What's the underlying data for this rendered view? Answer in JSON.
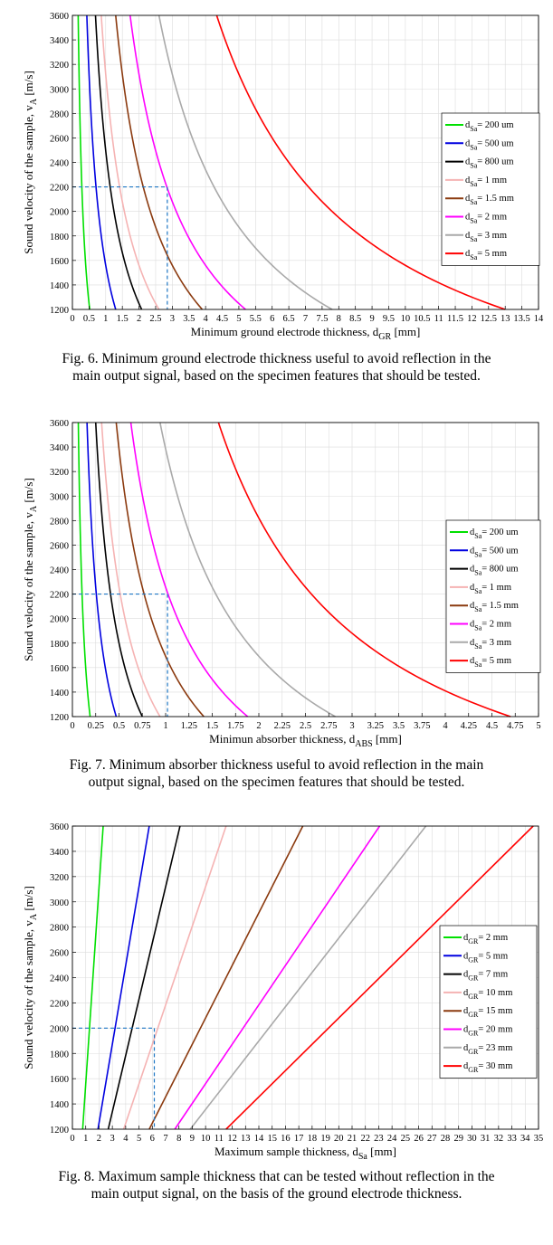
{
  "figures": [
    {
      "caption_lines": [
        "Fig. 6. Minimum ground electrode thickness useful to avoid reflection in the",
        "main output signal, based on the specimen features that should be tested."
      ]
    },
    {
      "caption_lines": [
        "Fig. 7. Minimum absorber thickness useful to avoid reflection in the main",
        "output signal, based on the specimen features that should be tested."
      ]
    },
    {
      "caption_lines": [
        "Fig. 8. Maximum sample thickness that can be tested without reflection in the",
        "main output signal, on the basis of the ground electrode thickness."
      ]
    }
  ],
  "chart_data": [
    {
      "type": "line",
      "xlabel": "Minimum ground electrode thickness, d",
      "xlabel_sub": "GR",
      "xlabel_unit": " [mm]",
      "ylabel": "Sound velocity of the sample, v",
      "ylabel_sub": "A",
      "ylabel_unit": " [m/s]",
      "xlim": [
        0,
        14
      ],
      "ylim": [
        1200,
        3600
      ],
      "xticks": [
        0,
        0.5,
        1,
        1.5,
        2,
        2.5,
        3,
        3.5,
        4,
        4.5,
        5,
        5.5,
        6,
        6.5,
        7,
        7.5,
        8,
        8.5,
        9,
        9.5,
        10,
        10.5,
        11,
        11.5,
        12,
        12.5,
        13,
        13.5,
        14
      ],
      "xtick_labels": [
        "0",
        "0.5",
        "1",
        "1.5",
        "2",
        "2.5",
        "3",
        "3.5",
        "4",
        "4.5",
        "5",
        "5.5",
        "6",
        "6.5",
        "7",
        "7.5",
        "8",
        "8.5",
        "9",
        "9.5",
        "10",
        "10.5",
        "11",
        "11.5",
        "12",
        "12.5",
        "13",
        "13.5",
        "14"
      ],
      "yticks": [
        1200,
        1400,
        1600,
        1800,
        2000,
        2200,
        2400,
        2600,
        2800,
        3000,
        3200,
        3400,
        3600
      ],
      "ytick_labels": [
        "1200",
        "1400",
        "1600",
        "1800",
        "2000",
        "2200",
        "2400",
        "2600",
        "2800",
        "3000",
        "3200",
        "3400",
        "3600"
      ],
      "grid": true,
      "legend_position": "right",
      "legend_prefix": "d",
      "legend_sub": "Sa",
      "series": [
        {
          "name": "= 200 um",
          "color": "#00e000",
          "model": "inverse",
          "x": [
            0.52,
            0.175
          ],
          "y": [
            1200,
            3600
          ]
        },
        {
          "name": "= 500 um",
          "color": "#0000e0",
          "model": "inverse",
          "x": [
            1.3,
            0.433
          ],
          "y": [
            1200,
            3600
          ]
        },
        {
          "name": "= 800 um",
          "color": "#000000",
          "model": "inverse",
          "x": [
            2.08,
            0.693
          ],
          "y": [
            1200,
            3600
          ]
        },
        {
          "name": "= 1 mm",
          "color": "#f5b3b3",
          "model": "inverse",
          "x": [
            2.6,
            0.867
          ],
          "y": [
            1200,
            3600
          ]
        },
        {
          "name": "= 1.5 mm",
          "color": "#8b3a0f",
          "model": "inverse",
          "x": [
            3.9,
            1.3
          ],
          "y": [
            1200,
            3600
          ]
        },
        {
          "name": "= 2 mm",
          "color": "#ff00ff",
          "model": "inverse",
          "x": [
            5.2,
            1.733
          ],
          "y": [
            1200,
            3600
          ]
        },
        {
          "name": "= 3 mm",
          "color": "#a9a9a9",
          "model": "inverse",
          "x": [
            7.8,
            2.6
          ],
          "y": [
            1200,
            3600
          ]
        },
        {
          "name": "= 5 mm",
          "color": "#ff0000",
          "model": "inverse",
          "x": [
            13.0,
            4.333
          ],
          "y": [
            1200,
            3600
          ]
        }
      ],
      "guide": {
        "x": 2.85,
        "y": 2200,
        "color": "#1f77c4"
      }
    },
    {
      "type": "line",
      "xlabel": "Minimun absorber thickness, d",
      "xlabel_sub": "ABS",
      "xlabel_unit": " [mm]",
      "ylabel": "Sound velocity of the sample, v",
      "ylabel_sub": "A",
      "ylabel_unit": " [m/s]",
      "xlim": [
        0,
        5
      ],
      "ylim": [
        1200,
        3600
      ],
      "xticks": [
        0,
        0.25,
        0.5,
        0.75,
        1,
        1.25,
        1.5,
        1.75,
        2,
        2.25,
        2.5,
        2.75,
        3,
        3.25,
        3.5,
        3.75,
        4,
        4.25,
        4.5,
        4.75,
        5
      ],
      "xtick_labels": [
        "0",
        "0.25",
        "0.5",
        "0.75",
        "1",
        "1.25",
        "1.5",
        "1.75",
        "2",
        "2.25",
        "2.5",
        "2.75",
        "3",
        "3.25",
        "3.5",
        "3.75",
        "4",
        "4.25",
        "4.5",
        "4.75",
        "5"
      ],
      "yticks": [
        1200,
        1400,
        1600,
        1800,
        2000,
        2200,
        2400,
        2600,
        2800,
        3000,
        3200,
        3400,
        3600
      ],
      "ytick_labels": [
        "1200",
        "1400",
        "1600",
        "1800",
        "2000",
        "2200",
        "2400",
        "2600",
        "2800",
        "3000",
        "3200",
        "3400",
        "3600"
      ],
      "grid": true,
      "legend_position": "right",
      "legend_prefix": "d",
      "legend_sub": "Sa",
      "series": [
        {
          "name": "= 200 um",
          "color": "#00e000",
          "model": "inverse",
          "x": [
            0.19,
            0.063
          ],
          "y": [
            1200,
            3600
          ]
        },
        {
          "name": "= 500 um",
          "color": "#0000e0",
          "model": "inverse",
          "x": [
            0.47,
            0.157
          ],
          "y": [
            1200,
            3600
          ]
        },
        {
          "name": "= 800 um",
          "color": "#000000",
          "model": "inverse",
          "x": [
            0.75,
            0.25
          ],
          "y": [
            1200,
            3600
          ]
        },
        {
          "name": "= 1 mm",
          "color": "#f5b3b3",
          "model": "inverse",
          "x": [
            0.94,
            0.313
          ],
          "y": [
            1200,
            3600
          ]
        },
        {
          "name": "= 1.5 mm",
          "color": "#8b3a0f",
          "model": "inverse",
          "x": [
            1.41,
            0.47
          ],
          "y": [
            1200,
            3600
          ]
        },
        {
          "name": "= 2 mm",
          "color": "#ff00ff",
          "model": "inverse",
          "x": [
            1.88,
            0.627
          ],
          "y": [
            1200,
            3600
          ]
        },
        {
          "name": "= 3 mm",
          "color": "#a9a9a9",
          "model": "inverse",
          "x": [
            2.82,
            0.94
          ],
          "y": [
            1200,
            3600
          ]
        },
        {
          "name": "= 5 mm",
          "color": "#ff0000",
          "model": "inverse",
          "x": [
            4.7,
            1.567
          ],
          "y": [
            1200,
            3600
          ]
        }
      ],
      "guide": {
        "x": 1.02,
        "y": 2200,
        "color": "#1f77c4"
      }
    },
    {
      "type": "line",
      "xlabel": "Maximum sample thickness, d",
      "xlabel_sub": "Sa",
      "xlabel_unit": " [mm]",
      "ylabel": "Sound velocity of the sample, v",
      "ylabel_sub": "A",
      "ylabel_unit": " [m/s]",
      "xlim": [
        0,
        35
      ],
      "ylim": [
        1200,
        3600
      ],
      "xticks": [
        0,
        1,
        2,
        3,
        4,
        5,
        6,
        7,
        8,
        9,
        10,
        11,
        12,
        13,
        14,
        15,
        16,
        17,
        18,
        19,
        20,
        21,
        22,
        23,
        24,
        25,
        26,
        27,
        28,
        29,
        30,
        31,
        32,
        33,
        34,
        35
      ],
      "xtick_labels": [
        "0",
        "1",
        "2",
        "3",
        "4",
        "5",
        "6",
        "7",
        "8",
        "9",
        "10",
        "11",
        "12",
        "13",
        "14",
        "15",
        "16",
        "17",
        "18",
        "19",
        "20",
        "21",
        "22",
        "23",
        "24",
        "25",
        "26",
        "27",
        "28",
        "29",
        "30",
        "31",
        "32",
        "33",
        "34",
        "35"
      ],
      "yticks": [
        1200,
        1400,
        1600,
        1800,
        2000,
        2200,
        2400,
        2600,
        2800,
        3000,
        3200,
        3400,
        3600
      ],
      "ytick_labels": [
        "1200",
        "1400",
        "1600",
        "1800",
        "2000",
        "2200",
        "2400",
        "2600",
        "2800",
        "3000",
        "3200",
        "3400",
        "3600"
      ],
      "grid": true,
      "legend_position": "right",
      "legend_prefix": "d",
      "legend_sub": "GR",
      "series": [
        {
          "name": "= 2 mm",
          "color": "#00e000",
          "model": "linear",
          "x": [
            0.77,
            2.31
          ],
          "y": [
            1200,
            3600
          ]
        },
        {
          "name": "= 5 mm",
          "color": "#0000e0",
          "model": "linear",
          "x": [
            1.92,
            5.77
          ],
          "y": [
            1200,
            3600
          ]
        },
        {
          "name": "= 7 mm",
          "color": "#000000",
          "model": "linear",
          "x": [
            2.69,
            8.08
          ],
          "y": [
            1200,
            3600
          ]
        },
        {
          "name": "= 10 mm",
          "color": "#f5b3b3",
          "model": "linear",
          "x": [
            3.85,
            11.54
          ],
          "y": [
            1200,
            3600
          ]
        },
        {
          "name": "= 15 mm",
          "color": "#8b3a0f",
          "model": "linear",
          "x": [
            5.77,
            17.3
          ],
          "y": [
            1200,
            3600
          ]
        },
        {
          "name": "= 20 mm",
          "color": "#ff00ff",
          "model": "linear",
          "x": [
            7.69,
            23.07
          ],
          "y": [
            1200,
            3600
          ]
        },
        {
          "name": "= 23 mm",
          "color": "#a9a9a9",
          "model": "linear",
          "x": [
            8.85,
            26.54
          ],
          "y": [
            1200,
            3600
          ]
        },
        {
          "name": "= 30 mm",
          "color": "#ff0000",
          "model": "linear",
          "x": [
            11.54,
            34.6
          ],
          "y": [
            1200,
            3600
          ]
        }
      ],
      "guide": {
        "x": 6.15,
        "y": 2000,
        "color": "#1f77c4"
      }
    }
  ]
}
